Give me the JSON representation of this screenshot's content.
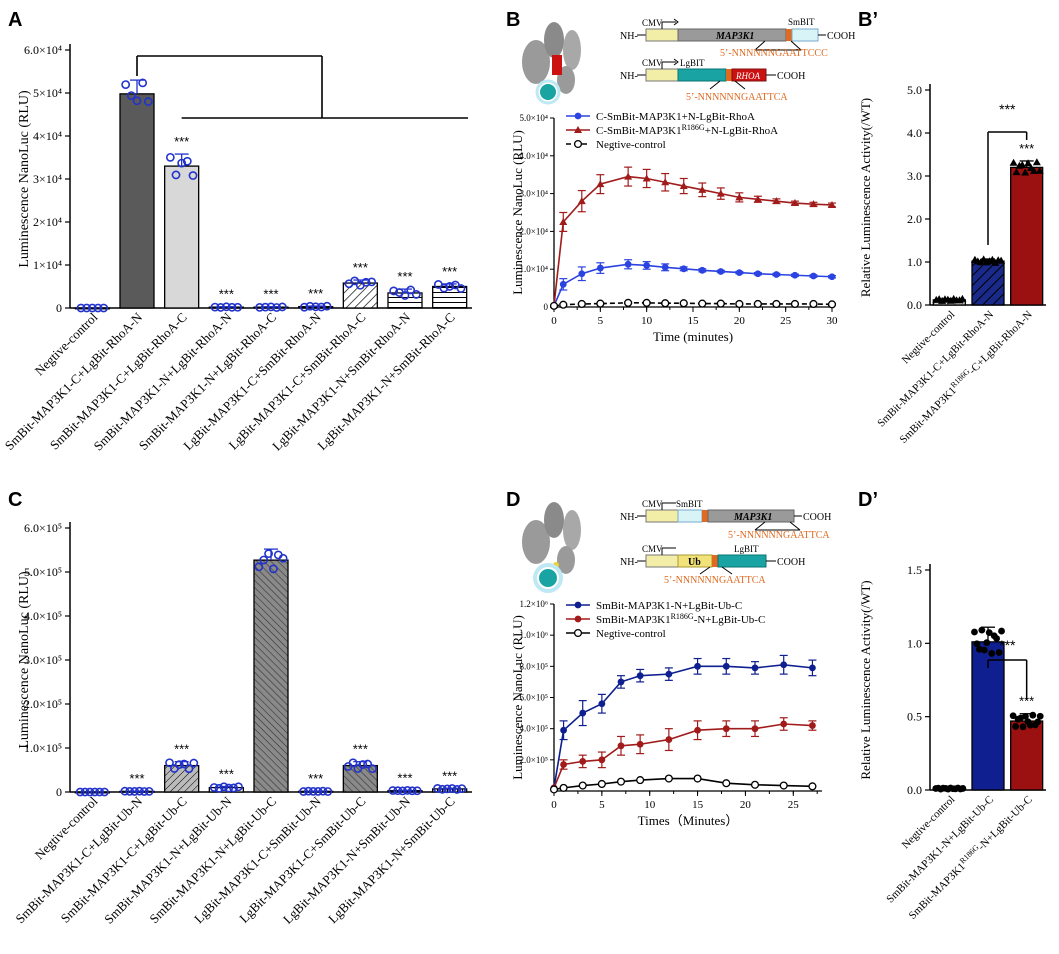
{
  "colors": {
    "axis": "#000000",
    "blue_marker": "#2233cc",
    "dark_bar": "#5a5a5a",
    "light_bar": "#d8d8d8",
    "line_blue": "#2b43e0",
    "line_red": "#a11b1b",
    "navy": "#0f1f8f",
    "dark_red": "#9b1010",
    "construct_orange": "#e06a20",
    "construct_yellow": "#f2eea8",
    "construct_teal": "#1aa3a3",
    "construct_gray": "#9a9a9a"
  },
  "panel_labels": {
    "a": "A",
    "b": "B",
    "b_prime": "B’",
    "c": "C",
    "d": "D",
    "d_prime": "D’"
  },
  "sig": "***",
  "constructs": {
    "b_top": {
      "nh": "NH-",
      "cmv": "CMV",
      "gene": "MAP3K1",
      "tag": "SmBIT",
      "cooh": "COOH",
      "seq": "5’-NNNNNNGAATTCCC"
    },
    "b_bottom": {
      "nh": "NH-",
      "cmv": "CMV",
      "tag": "LgBIT",
      "gene": "RHOA",
      "cooh": "COOH",
      "seq": "5’-NNNNNNGAATTCA"
    },
    "d_top": {
      "nh": "NH-",
      "cmv": "CMV",
      "tag": "SmBIT",
      "gene": "MAP3K1",
      "cooh": "COOH",
      "seq": "5’-NNNNNNGAATTCA"
    },
    "d_bottom": {
      "nh": "NH-",
      "cmv": "CMV",
      "gene": "Ub",
      "tag": "LgBIT",
      "cooh": "COOH",
      "seq": "5’-NNNNNNGAATTCA"
    }
  },
  "chart_data": [
    {
      "id": "A",
      "type": "bar",
      "ylabel": "Luminescence NanoLuc (RLU)",
      "ylim": [
        0,
        60000
      ],
      "yticks": [
        "0",
        "1×10⁴",
        "2×10⁴",
        "3×10⁴",
        "4×10⁴",
        "5×10⁴",
        "6.0×10⁴"
      ],
      "categories": [
        "Negtive-control",
        "SmBit-MAP3K1-C+LgBit-RhoA-N",
        "SmBit-MAP3K1-C+LgBit-RhoA-C",
        "SmBit-MAP3K1-N+LgBit-RhoA-N",
        "SmBit-MAP3K1-N+LgBit-RhoA-C",
        "LgBit-MAP3K1-C+SmBit-RhoA-N",
        "LgBit-MAP3K1-C+SmBit-RhoA-C",
        "LgBit-MAP3K1-N+SmBit-RhoA-N",
        "LgBit-MAP3K1-N+SmBit-RhoA-C"
      ],
      "values": [
        0,
        49800,
        33000,
        200,
        200,
        300,
        5800,
        3500,
        5000
      ],
      "errors": [
        0,
        3200,
        2800,
        100,
        100,
        150,
        700,
        900,
        600
      ],
      "significance": [
        "",
        "",
        "***",
        "***",
        "***",
        "***",
        "***",
        "***",
        "***"
      ]
    },
    {
      "id": "B",
      "type": "line",
      "xlabel": "Time (minutes)",
      "ylabel": "Luminescence NanoLuc (RLU)",
      "xlim": [
        0,
        30
      ],
      "ylim": [
        0,
        50000
      ],
      "xticks": [
        "0",
        "5",
        "10",
        "15",
        "20",
        "25",
        "30"
      ],
      "yticks": [
        "0",
        "1.0×10⁴",
        "2.0×10⁴",
        "3.0×10⁴",
        "4.0×10⁴",
        "5.0×10⁴"
      ],
      "x": [
        0,
        1,
        3,
        5,
        8,
        10,
        12,
        14,
        16,
        18,
        20,
        22,
        24,
        26,
        28,
        30
      ],
      "series": [
        {
          "name": "C-SmBit-MAP3K1+N-LgBit-RhoA",
          "values": [
            300,
            6000,
            8800,
            10300,
            11300,
            11000,
            10500,
            10100,
            9700,
            9400,
            9100,
            8800,
            8600,
            8400,
            8200,
            8000
          ],
          "errors": [
            0,
            1500,
            1800,
            1400,
            1200,
            1000,
            900,
            500,
            400,
            300,
            300,
            300,
            300,
            300,
            300,
            300
          ]
        },
        {
          "name": "C-SmBit-MAP3K1R186G+N-LgBit-RhoA",
          "values": [
            500,
            22500,
            28000,
            32500,
            34500,
            34000,
            33000,
            32000,
            31000,
            30000,
            29000,
            28500,
            28000,
            27500,
            27200,
            27000
          ],
          "errors": [
            0,
            2500,
            2800,
            2500,
            2500,
            2400,
            2300,
            2000,
            1800,
            1500,
            1200,
            800,
            600,
            500,
            500,
            500
          ]
        },
        {
          "name": "Negtive-control",
          "values": [
            300,
            600,
            800,
            900,
            1100,
            1100,
            1000,
            1000,
            900,
            900,
            800,
            800,
            800,
            800,
            800,
            700
          ],
          "errors": [
            0,
            200,
            200,
            200,
            200,
            200,
            200,
            200,
            200,
            200,
            200,
            200,
            200,
            200,
            200,
            200
          ]
        }
      ]
    },
    {
      "id": "B_prime",
      "type": "bar",
      "ylabel": "Relative Luminescence Activity(/WT)",
      "ylim": [
        0,
        5
      ],
      "yticks": [
        "0.0",
        "1.0",
        "2.0",
        "3.0",
        "4.0",
        "5.0"
      ],
      "categories": [
        "Negtive-control",
        "SmBit-MAP3K1-C+LgBit-RhoA-N",
        "SmBit-MAP3K1R186G-C+LgBit-RhoA-N"
      ],
      "values": [
        0.12,
        1.02,
        3.2
      ],
      "errors": [
        0.03,
        0.05,
        0.15
      ],
      "significance": [
        "",
        "",
        "***"
      ]
    },
    {
      "id": "C",
      "type": "bar",
      "ylabel": "Luminescence NanoLuc (RLU)",
      "ylim": [
        0,
        600000
      ],
      "yticks": [
        "0",
        "1.0×10⁵",
        "2.0×10⁵",
        "3.0×10⁵",
        "4.0×10⁵",
        "5.0×10⁵",
        "6.0×10⁵"
      ],
      "categories": [
        "Negtive-control",
        "SmBit-MAP3K1-C+LgBit-Ub-N",
        "SmBit-MAP3K1-C+LgBit-Ub-C",
        "SmBit-MAP3K1-N+LgBit-Ub-N",
        "SmBit-MAP3K1-N+LgBit-Ub-C",
        "LgBit-MAP3K1-C+SmBit-Ub-N",
        "LgBit-MAP3K1-C+SmBit-Ub-C",
        "LgBit-MAP3K1-N+SmBit-Ub-N",
        "LgBit-MAP3K1-N+SmBit-Ub-C"
      ],
      "values": [
        0,
        1500,
        60000,
        10000,
        527000,
        1500,
        60000,
        3000,
        7000
      ],
      "errors": [
        0,
        500,
        9000,
        2500,
        25000,
        500,
        9000,
        800,
        1500
      ],
      "significance": [
        "",
        "***",
        "***",
        "***",
        "",
        "***",
        "***",
        "***",
        "***"
      ]
    },
    {
      "id": "D",
      "type": "line",
      "xlabel": "Times（Minutes）",
      "ylabel": "Luminescence NanoLuc (RLU)",
      "xlim": [
        0,
        28
      ],
      "ylim": [
        0,
        1200000
      ],
      "xticks": [
        "0",
        "5",
        "10",
        "15",
        "20",
        "25"
      ],
      "yticks": [
        "2.0×10⁵",
        "4.0×10⁵",
        "6.0×10⁵",
        "8.0×10⁵",
        "1.0×10⁶",
        "1.2×10⁶"
      ],
      "x": [
        0,
        1,
        3,
        5,
        7,
        9,
        12,
        15,
        18,
        21,
        24,
        27
      ],
      "series": [
        {
          "name": "SmBit-MAP3K1-N+LgBit-Ub-C",
          "values": [
            20000,
            390000,
            500000,
            560000,
            700000,
            740000,
            750000,
            800000,
            800000,
            790000,
            810000,
            790000
          ],
          "errors": [
            0,
            60000,
            80000,
            60000,
            40000,
            40000,
            40000,
            50000,
            50000,
            40000,
            60000,
            50000
          ]
        },
        {
          "name": "SmBit-MAP3K1R186G-N+LgBit-Ub-C",
          "values": [
            20000,
            170000,
            190000,
            200000,
            290000,
            300000,
            330000,
            390000,
            400000,
            400000,
            430000,
            420000
          ],
          "errors": [
            0,
            30000,
            40000,
            50000,
            60000,
            60000,
            70000,
            60000,
            50000,
            50000,
            40000,
            30000
          ]
        },
        {
          "name": "Negtive-control",
          "values": [
            10000,
            20000,
            35000,
            45000,
            60000,
            70000,
            80000,
            80000,
            50000,
            40000,
            35000,
            30000
          ],
          "errors": [
            0,
            0,
            0,
            0,
            0,
            0,
            0,
            0,
            0,
            0,
            0,
            0
          ]
        }
      ]
    },
    {
      "id": "D_prime",
      "type": "bar",
      "ylabel": "Relative Luminescence Activity(/WT)",
      "ylim": [
        0,
        1.5
      ],
      "yticks": [
        "0.0",
        "0.5",
        "1.0",
        "1.5"
      ],
      "categories": [
        "Negtive-control",
        "SmBit-MAP3K1-N+LgBit-Ub-C",
        "SmBit-MAP3K1R186G-N+LgBit-Ub-C"
      ],
      "values": [
        0.01,
        1.01,
        0.47
      ],
      "errors": [
        0.005,
        0.1,
        0.05
      ],
      "significance": [
        "",
        "",
        "***"
      ]
    }
  ]
}
